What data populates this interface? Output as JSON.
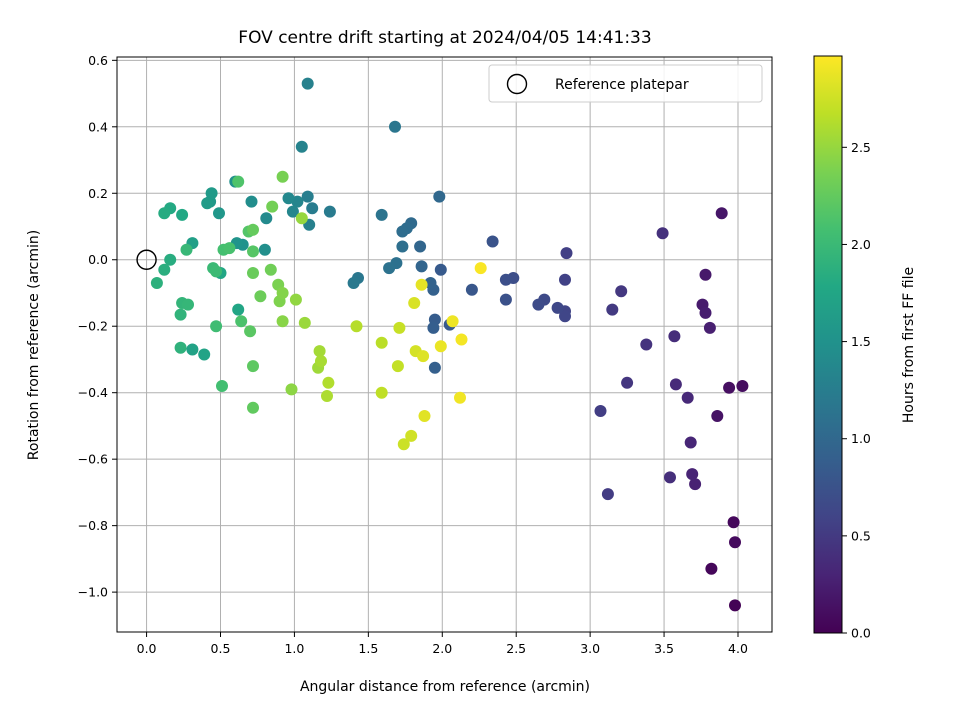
{
  "chart_data": {
    "type": "scatter",
    "title": "FOV centre drift starting at 2024/04/05 14:41:33",
    "xlabel": "Angular distance from reference (arcmin)",
    "ylabel": "Rotation from reference (arcmin)",
    "xlim": [
      -0.2,
      4.23
    ],
    "ylim": [
      -1.12,
      0.61
    ],
    "xticks": [
      0.0,
      0.5,
      1.0,
      1.5,
      2.0,
      2.5,
      3.0,
      3.5,
      4.0
    ],
    "xtick_labels": [
      "0.0",
      "0.5",
      "1.0",
      "1.5",
      "2.0",
      "2.5",
      "3.0",
      "3.5",
      "4.0"
    ],
    "yticks": [
      0.6,
      0.4,
      0.2,
      0.0,
      -0.2,
      -0.4,
      -0.6,
      -0.8,
      -1.0
    ],
    "ytick_labels": [
      "0.6",
      "0.4",
      "0.2",
      "0.0",
      "−0.2",
      "−0.4",
      "−0.6",
      "−0.8",
      "−1.0"
    ],
    "grid": true,
    "colormap": "viridis",
    "colorbar": {
      "label": "Hours from first FF file",
      "range": [
        0.0,
        2.97
      ],
      "ticks": [
        0.0,
        0.5,
        1.0,
        1.5,
        2.0,
        2.5
      ],
      "tick_labels": [
        "0.0",
        "0.5",
        "1.0",
        "1.5",
        "2.0",
        "2.5"
      ]
    },
    "legend": {
      "position": "top-right",
      "entries": [
        {
          "label": "Reference platepar",
          "marker": "open-circle"
        }
      ]
    },
    "reference_point": {
      "x": 0.0,
      "y": 0.0
    },
    "points": [
      {
        "x": 3.98,
        "y": -1.04,
        "c": 0.02
      },
      {
        "x": 3.82,
        "y": -0.93,
        "c": 0.05
      },
      {
        "x": 3.98,
        "y": -0.85,
        "c": 0.08
      },
      {
        "x": 3.97,
        "y": -0.79,
        "c": 0.06
      },
      {
        "x": 4.03,
        "y": -0.38,
        "c": 0.1
      },
      {
        "x": 3.94,
        "y": -0.385,
        "c": 0.12
      },
      {
        "x": 3.86,
        "y": -0.47,
        "c": 0.15
      },
      {
        "x": 3.89,
        "y": 0.14,
        "c": 0.18
      },
      {
        "x": 3.78,
        "y": -0.045,
        "c": 0.2
      },
      {
        "x": 3.76,
        "y": -0.135,
        "c": 0.22
      },
      {
        "x": 3.78,
        "y": -0.16,
        "c": 0.24
      },
      {
        "x": 3.81,
        "y": -0.205,
        "c": 0.26
      },
      {
        "x": 3.71,
        "y": -0.675,
        "c": 0.28
      },
      {
        "x": 3.69,
        "y": -0.645,
        "c": 0.3
      },
      {
        "x": 3.68,
        "y": -0.55,
        "c": 0.32
      },
      {
        "x": 3.66,
        "y": -0.415,
        "c": 0.34
      },
      {
        "x": 3.58,
        "y": -0.375,
        "c": 0.36
      },
      {
        "x": 3.57,
        "y": -0.23,
        "c": 0.38
      },
      {
        "x": 3.54,
        "y": -0.655,
        "c": 0.4
      },
      {
        "x": 3.49,
        "y": 0.08,
        "c": 0.42
      },
      {
        "x": 3.38,
        "y": -0.255,
        "c": 0.44
      },
      {
        "x": 3.25,
        "y": -0.37,
        "c": 0.46
      },
      {
        "x": 3.21,
        "y": -0.095,
        "c": 0.48
      },
      {
        "x": 3.15,
        "y": -0.15,
        "c": 0.5
      },
      {
        "x": 3.12,
        "y": -0.705,
        "c": 0.52
      },
      {
        "x": 3.07,
        "y": -0.455,
        "c": 0.54
      },
      {
        "x": 2.84,
        "y": 0.02,
        "c": 0.56
      },
      {
        "x": 2.83,
        "y": -0.06,
        "c": 0.58
      },
      {
        "x": 2.83,
        "y": -0.155,
        "c": 0.6
      },
      {
        "x": 2.83,
        "y": -0.17,
        "c": 0.62
      },
      {
        "x": 2.78,
        "y": -0.145,
        "c": 0.64
      },
      {
        "x": 2.69,
        "y": -0.12,
        "c": 0.66
      },
      {
        "x": 2.65,
        "y": -0.135,
        "c": 0.68
      },
      {
        "x": 2.48,
        "y": -0.055,
        "c": 0.7
      },
      {
        "x": 2.43,
        "y": -0.06,
        "c": 0.72
      },
      {
        "x": 2.43,
        "y": -0.12,
        "c": 0.74
      },
      {
        "x": 2.34,
        "y": 0.055,
        "c": 0.76
      },
      {
        "x": 2.2,
        "y": -0.09,
        "c": 0.8
      },
      {
        "x": 2.05,
        "y": -0.195,
        "c": 0.82
      },
      {
        "x": 1.99,
        "y": -0.03,
        "c": 0.84
      },
      {
        "x": 1.95,
        "y": -0.18,
        "c": 0.86
      },
      {
        "x": 1.94,
        "y": -0.205,
        "c": 0.88
      },
      {
        "x": 1.95,
        "y": -0.325,
        "c": 0.9
      },
      {
        "x": 1.94,
        "y": -0.09,
        "c": 0.92
      },
      {
        "x": 1.92,
        "y": -0.07,
        "c": 0.94
      },
      {
        "x": 1.86,
        "y": -0.02,
        "c": 0.96
      },
      {
        "x": 1.85,
        "y": 0.04,
        "c": 0.98
      },
      {
        "x": 1.98,
        "y": 0.19,
        "c": 1.0
      },
      {
        "x": 1.79,
        "y": 0.11,
        "c": 1.02
      },
      {
        "x": 1.76,
        "y": 0.095,
        "c": 1.04
      },
      {
        "x": 1.73,
        "y": 0.085,
        "c": 1.06
      },
      {
        "x": 1.73,
        "y": 0.04,
        "c": 1.08
      },
      {
        "x": 1.69,
        "y": -0.01,
        "c": 1.1
      },
      {
        "x": 1.64,
        "y": -0.025,
        "c": 1.12
      },
      {
        "x": 1.59,
        "y": 0.135,
        "c": 1.14
      },
      {
        "x": 1.68,
        "y": 0.4,
        "c": 1.16
      },
      {
        "x": 1.43,
        "y": -0.055,
        "c": 1.18
      },
      {
        "x": 1.4,
        "y": -0.07,
        "c": 1.2
      },
      {
        "x": 1.24,
        "y": 0.145,
        "c": 1.22
      },
      {
        "x": 1.12,
        "y": 0.155,
        "c": 1.24
      },
      {
        "x": 1.09,
        "y": 0.19,
        "c": 1.26
      },
      {
        "x": 1.1,
        "y": 0.105,
        "c": 1.28
      },
      {
        "x": 1.09,
        "y": 0.53,
        "c": 1.3
      },
      {
        "x": 1.05,
        "y": 0.34,
        "c": 1.32
      },
      {
        "x": 1.02,
        "y": 0.175,
        "c": 1.34
      },
      {
        "x": 0.99,
        "y": 0.145,
        "c": 1.36
      },
      {
        "x": 0.96,
        "y": 0.185,
        "c": 1.38
      },
      {
        "x": 0.81,
        "y": 0.125,
        "c": 1.4
      },
      {
        "x": 0.71,
        "y": 0.175,
        "c": 1.44
      },
      {
        "x": 0.8,
        "y": 0.03,
        "c": 1.46
      },
      {
        "x": 0.6,
        "y": 0.235,
        "c": 1.48
      },
      {
        "x": 0.65,
        "y": 0.045,
        "c": 1.5
      },
      {
        "x": 0.61,
        "y": 0.05,
        "c": 1.52
      },
      {
        "x": 0.49,
        "y": 0.14,
        "c": 1.56
      },
      {
        "x": 0.43,
        "y": 0.175,
        "c": 1.58
      },
      {
        "x": 0.44,
        "y": 0.2,
        "c": 1.6
      },
      {
        "x": 0.41,
        "y": 0.17,
        "c": 1.62
      },
      {
        "x": 0.31,
        "y": 0.05,
        "c": 1.66
      },
      {
        "x": 0.31,
        "y": -0.27,
        "c": 1.7
      },
      {
        "x": 0.39,
        "y": -0.285,
        "c": 1.72
      },
      {
        "x": 0.62,
        "y": -0.15,
        "c": 1.74
      },
      {
        "x": 0.5,
        "y": -0.04,
        "c": 1.76
      },
      {
        "x": 0.24,
        "y": 0.135,
        "c": 1.78
      },
      {
        "x": 0.16,
        "y": 0.155,
        "c": 1.8
      },
      {
        "x": 0.12,
        "y": 0.14,
        "c": 1.82
      },
      {
        "x": 0.16,
        "y": 0.0,
        "c": 1.84
      },
      {
        "x": 0.12,
        "y": -0.03,
        "c": 1.86
      },
      {
        "x": 0.07,
        "y": -0.07,
        "c": 1.88
      },
      {
        "x": 0.23,
        "y": -0.265,
        "c": 1.9
      },
      {
        "x": 0.23,
        "y": -0.165,
        "c": 1.92
      },
      {
        "x": 0.24,
        "y": -0.13,
        "c": 1.94
      },
      {
        "x": 0.28,
        "y": -0.135,
        "c": 1.96
      },
      {
        "x": 0.27,
        "y": 0.03,
        "c": 1.98
      },
      {
        "x": 0.45,
        "y": -0.025,
        "c": 2.0
      },
      {
        "x": 0.47,
        "y": -0.035,
        "c": 2.02
      },
      {
        "x": 0.47,
        "y": -0.2,
        "c": 2.04
      },
      {
        "x": 0.51,
        "y": -0.38,
        "c": 2.06
      },
      {
        "x": 0.52,
        "y": 0.03,
        "c": 2.08
      },
      {
        "x": 0.56,
        "y": 0.035,
        "c": 2.1
      },
      {
        "x": 0.64,
        "y": -0.185,
        "c": 2.12
      },
      {
        "x": 0.62,
        "y": 0.235,
        "c": 2.14
      },
      {
        "x": 0.69,
        "y": 0.085,
        "c": 2.16
      },
      {
        "x": 0.72,
        "y": 0.025,
        "c": 2.18
      },
      {
        "x": 0.7,
        "y": -0.215,
        "c": 2.2
      },
      {
        "x": 0.72,
        "y": -0.32,
        "c": 2.22
      },
      {
        "x": 0.72,
        "y": -0.445,
        "c": 2.24
      },
      {
        "x": 0.72,
        "y": 0.09,
        "c": 2.26
      },
      {
        "x": 0.72,
        "y": -0.04,
        "c": 2.28
      },
      {
        "x": 0.77,
        "y": -0.11,
        "c": 2.3
      },
      {
        "x": 0.84,
        "y": -0.03,
        "c": 2.32
      },
      {
        "x": 0.85,
        "y": 0.16,
        "c": 2.34
      },
      {
        "x": 0.92,
        "y": 0.25,
        "c": 2.36
      },
      {
        "x": 0.89,
        "y": -0.075,
        "c": 2.38
      },
      {
        "x": 0.9,
        "y": -0.125,
        "c": 2.4
      },
      {
        "x": 0.92,
        "y": -0.1,
        "c": 2.42
      },
      {
        "x": 0.92,
        "y": -0.185,
        "c": 2.44
      },
      {
        "x": 0.98,
        "y": -0.39,
        "c": 2.46
      },
      {
        "x": 1.01,
        "y": -0.12,
        "c": 2.48
      },
      {
        "x": 1.05,
        "y": 0.125,
        "c": 2.5
      },
      {
        "x": 1.07,
        "y": -0.19,
        "c": 2.52
      },
      {
        "x": 1.16,
        "y": -0.325,
        "c": 2.54
      },
      {
        "x": 1.17,
        "y": -0.275,
        "c": 2.56
      },
      {
        "x": 1.18,
        "y": -0.305,
        "c": 2.58
      },
      {
        "x": 1.22,
        "y": -0.41,
        "c": 2.6
      },
      {
        "x": 1.23,
        "y": -0.37,
        "c": 2.62
      },
      {
        "x": 1.42,
        "y": -0.2,
        "c": 2.64
      },
      {
        "x": 1.59,
        "y": -0.25,
        "c": 2.66
      },
      {
        "x": 1.59,
        "y": -0.4,
        "c": 2.68
      },
      {
        "x": 1.7,
        "y": -0.32,
        "c": 2.7
      },
      {
        "x": 1.71,
        "y": -0.205,
        "c": 2.72
      },
      {
        "x": 1.74,
        "y": -0.555,
        "c": 2.74
      },
      {
        "x": 1.79,
        "y": -0.53,
        "c": 2.76
      },
      {
        "x": 1.82,
        "y": -0.275,
        "c": 2.78
      },
      {
        "x": 1.81,
        "y": -0.13,
        "c": 2.8
      },
      {
        "x": 1.87,
        "y": -0.29,
        "c": 2.82
      },
      {
        "x": 1.88,
        "y": -0.47,
        "c": 2.84
      },
      {
        "x": 1.86,
        "y": -0.075,
        "c": 2.86
      },
      {
        "x": 1.99,
        "y": -0.26,
        "c": 2.88
      },
      {
        "x": 2.07,
        "y": -0.185,
        "c": 2.9
      },
      {
        "x": 2.12,
        "y": -0.415,
        "c": 2.91
      },
      {
        "x": 2.13,
        "y": -0.24,
        "c": 2.93
      },
      {
        "x": 2.26,
        "y": -0.025,
        "c": 2.95
      }
    ]
  }
}
